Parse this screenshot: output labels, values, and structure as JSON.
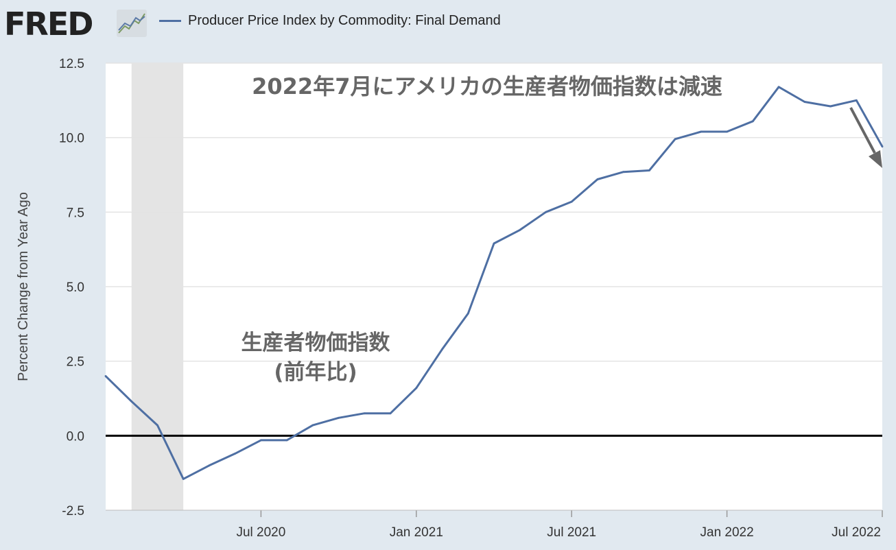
{
  "header": {
    "logo": "FRED",
    "logo_icon": "trend-chart-icon",
    "legend_label": "Producer Price Index by Commodity: Final Demand"
  },
  "colors": {
    "background": "#e1e9f0",
    "plot": "#ffffff",
    "series": "#4e6fa3",
    "recession": "#e4e4e4",
    "zero_line": "#000000",
    "arrow": "#666666"
  },
  "chart_data": {
    "type": "line",
    "ylabel": "Percent Change from Year Ago",
    "ylim": [
      -2.5,
      12.5
    ],
    "yticks": [
      -2.5,
      0.0,
      2.5,
      5.0,
      7.5,
      10.0,
      12.5
    ],
    "ytick_labels": [
      "-2.5",
      "0.0",
      "2.5",
      "5.0",
      "7.5",
      "10.0",
      "12.5"
    ],
    "xlim": [
      "2020-01",
      "2022-07"
    ],
    "xticks": [
      "2020-07",
      "2021-01",
      "2021-07",
      "2022-01",
      "2022-07"
    ],
    "xtick_labels": [
      "Jul 2020",
      "Jan 2021",
      "Jul 2021",
      "Jan 2022",
      "Jul 2022"
    ],
    "grid": true,
    "recession": [
      "2020-02",
      "2020-04"
    ],
    "series": [
      {
        "name": "Producer Price Index by Commodity: Final Demand",
        "x": [
          "2020-01",
          "2020-02",
          "2020-03",
          "2020-04",
          "2020-05",
          "2020-06",
          "2020-07",
          "2020-08",
          "2020-09",
          "2020-10",
          "2020-11",
          "2020-12",
          "2021-01",
          "2021-02",
          "2021-03",
          "2021-04",
          "2021-05",
          "2021-06",
          "2021-07",
          "2021-08",
          "2021-09",
          "2021-10",
          "2021-11",
          "2021-12",
          "2022-01",
          "2022-02",
          "2022-03",
          "2022-04",
          "2022-05",
          "2022-06",
          "2022-07"
        ],
        "values": [
          2.0,
          1.15,
          0.35,
          -1.45,
          -1.0,
          -0.6,
          -0.15,
          -0.15,
          0.35,
          0.6,
          0.75,
          0.75,
          1.6,
          2.9,
          4.1,
          6.45,
          6.9,
          7.5,
          7.85,
          8.6,
          8.85,
          8.9,
          9.95,
          10.2,
          10.2,
          10.55,
          11.7,
          11.2,
          11.05,
          11.25,
          9.7
        ]
      }
    ],
    "annotations": [
      {
        "id": "title",
        "text": "2022年7月にアメリカの生産者物価指数は減速"
      },
      {
        "id": "label-line1",
        "text": "生産者物価指数"
      },
      {
        "id": "label-line2",
        "text": "(前年比)"
      }
    ]
  }
}
